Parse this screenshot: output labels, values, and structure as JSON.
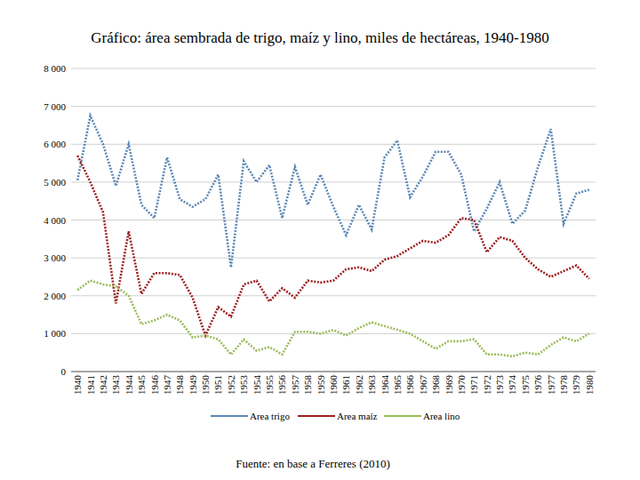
{
  "chart_data": {
    "type": "line",
    "title": "Gráfico: área sembrada de trigo, maíz y lino, miles de hectáreas, 1940-1980",
    "source": "Fuente: en base a Ferreres (2010)",
    "categories": [
      "1940",
      "1941",
      "1942",
      "1943",
      "1944",
      "1945",
      "1946",
      "1947",
      "1948",
      "1949",
      "1950",
      "1951",
      "1952",
      "1953",
      "1954",
      "1955",
      "1956",
      "1957",
      "1958",
      "1959",
      "1960",
      "1961",
      "1962",
      "1963",
      "1964",
      "1965",
      "1966",
      "1967",
      "1968",
      "1969",
      "1970",
      "1971",
      "1972",
      "1973",
      "1974",
      "1975",
      "1976",
      "1977",
      "1978",
      "1979",
      "1980"
    ],
    "series": [
      {
        "name": "Area trigo",
        "color": "#5b87b5",
        "line_style": "dotted",
        "values": [
          5050,
          6750,
          6000,
          4900,
          6000,
          4400,
          4050,
          5650,
          4550,
          4350,
          4550,
          5200,
          2750,
          5550,
          5000,
          5450,
          4050,
          5400,
          4400,
          5200,
          4350,
          3600,
          4400,
          3750,
          5650,
          6100,
          4600,
          5150,
          5800,
          5800,
          5200,
          3700,
          4300,
          5000,
          3900,
          4250,
          5400,
          6400,
          3900,
          4700,
          4800
        ]
      },
      {
        "name": "Area maíz",
        "color": "#9c1f1f",
        "line_style": "dotted",
        "values": [
          5700,
          5000,
          4200,
          1800,
          3700,
          2050,
          2600,
          2600,
          2550,
          1950,
          950,
          1700,
          1450,
          2300,
          2400,
          1850,
          2200,
          1950,
          2400,
          2350,
          2400,
          2700,
          2750,
          2650,
          2950,
          3050,
          3250,
          3450,
          3400,
          3600,
          4050,
          4000,
          3150,
          3550,
          3450,
          3000,
          2700,
          2500,
          2650,
          2800,
          2450
        ]
      },
      {
        "name": "Area lino",
        "color": "#9bbb59",
        "line_style": "dotted",
        "values": [
          2150,
          2400,
          2300,
          2250,
          2000,
          1250,
          1350,
          1500,
          1350,
          900,
          950,
          850,
          450,
          850,
          550,
          650,
          450,
          1050,
          1050,
          1000,
          1100,
          950,
          1150,
          1300,
          1200,
          1100,
          1000,
          800,
          600,
          800,
          800,
          850,
          450,
          450,
          400,
          500,
          450,
          700,
          900,
          800,
          1000
        ]
      }
    ],
    "ylim": [
      0,
      8000
    ],
    "yticks": [
      0,
      {
        "value": 1000,
        "label": "1 000"
      },
      {
        "value": 2000,
        "label": "2 000"
      },
      {
        "value": 3000,
        "label": "3 000"
      },
      {
        "value": 4000,
        "label": "4 000"
      },
      {
        "value": 5000,
        "label": "5 000"
      },
      {
        "value": 6000,
        "label": "6 000"
      },
      {
        "value": 7000,
        "label": "7 000"
      },
      {
        "value": 8000,
        "label": "8 000"
      }
    ],
    "grid": true,
    "legend": "bottom"
  }
}
